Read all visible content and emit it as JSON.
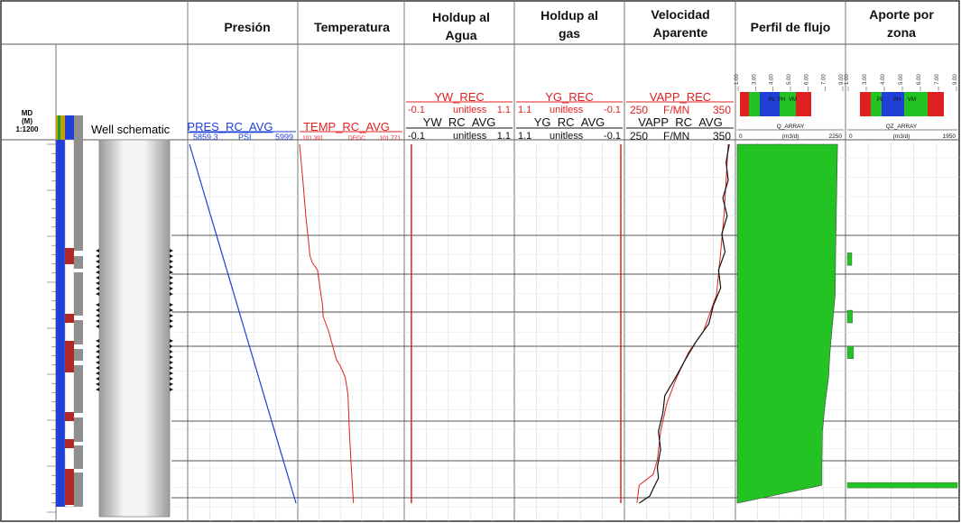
{
  "headers": {
    "presion": "Presión",
    "temperatura": "Temperatura",
    "holdup_agua_1": "Holdup al",
    "holdup_agua_2": "Agua",
    "holdup_gas_1": "Holdup al",
    "holdup_gas_2": "gas",
    "velocidad_1": "Velocidad",
    "velocidad_2": "Aparente",
    "perfil": "Perfil de flujo",
    "aporte_1": "Aporte por",
    "aporte_2": "zona"
  },
  "depth": {
    "md": "MD",
    "unit": "(M)",
    "scale": "1:1200"
  },
  "well_schematic_label": "Well schematic",
  "pres": {
    "name": "PRES_RC_AVG",
    "min": "5859.3",
    "unit": "PSI",
    "max": "5999"
  },
  "temp": {
    "name": "TEMP_RC_AVG",
    "min": "101.391",
    "unit": "DEGC",
    "max": "101.771"
  },
  "yw": {
    "rec_name": "YW_REC",
    "rec_min": "-0.1",
    "rec_unit": "unitless",
    "rec_max": "1.1",
    "avg_name": "YW_RC_AVG",
    "avg_min": "-0.1",
    "avg_unit": "unitless",
    "avg_max": "1.1"
  },
  "yg": {
    "rec_name": "YG_REC",
    "rec_min": "1.1",
    "rec_unit": "unitless",
    "rec_max": "-0.1",
    "avg_name": "YG_RC_AVG",
    "avg_min": "1.1",
    "avg_unit": "unitless",
    "avg_max": "-0.1"
  },
  "vapp": {
    "rec_name": "VAPP_REC",
    "rec_min": "250",
    "rec_unit": "F/MN",
    "rec_max": "350",
    "avg_name": "VAPP_RC_AVG",
    "avg_min": "250",
    "avg_unit": "F/MN",
    "avg_max": "350"
  },
  "q_array": {
    "name": "Q_ARRAY",
    "min": "0",
    "unit": "(m3/d)",
    "max": "2250"
  },
  "qz_array": {
    "name": "QZ_ARRAY",
    "min": "0",
    "unit": "(m3/d)",
    "max": "1950"
  },
  "mini_scale_labels": [
    "1.00",
    "3.00",
    "4.00",
    "5.00",
    "6.00",
    "7.00",
    "9.00"
  ],
  "mini_bar_labels": [
    "PL",
    "PH",
    "VM"
  ],
  "colors": {
    "pressure": "#1f3fd6",
    "temperature": "#e02020",
    "rec": "#e02020",
    "avg": "#111111",
    "flow": "#22c322",
    "depth_bar": "#1f3fd6",
    "perf_zone": "#b02828"
  },
  "chart_data": {
    "type": "line",
    "depth_axis": "relative depth fraction (0 = top of log, 1 = bottom)",
    "series": [
      {
        "name": "PRES_RC_AVG",
        "unit": "PSI",
        "range": [
          5859.3,
          5999
        ],
        "depth": [
          0,
          1
        ],
        "values": [
          5859.3,
          5999
        ]
      },
      {
        "name": "TEMP_RC_AVG",
        "unit": "DEGC",
        "range": [
          101.391,
          101.771
        ],
        "depth": [
          0,
          0.09,
          0.2,
          0.27,
          0.31,
          0.33,
          0.35,
          0.45,
          0.48,
          0.5,
          0.52,
          0.6,
          0.62,
          0.65,
          0.7,
          0.8,
          0.9,
          1.0
        ],
        "values": [
          101.391,
          101.402,
          101.414,
          101.424,
          101.429,
          101.438,
          101.457,
          101.476,
          101.478,
          101.488,
          101.498,
          101.527,
          101.543,
          101.56,
          101.57,
          101.575,
          101.582,
          101.59
        ]
      },
      {
        "name": "YW_REC",
        "unit": "unitless",
        "range": [
          -0.1,
          1.1
        ],
        "depth": [
          0,
          1
        ],
        "values": [
          -0.04,
          -0.04
        ]
      },
      {
        "name": "YG_REC",
        "unit": "unitless",
        "range": [
          1.1,
          -0.1
        ],
        "depth": [
          0,
          1
        ],
        "values": [
          -0.08,
          -0.08
        ]
      },
      {
        "name": "VAPP_REC",
        "unit": "F/MN",
        "range": [
          250,
          350
        ],
        "depth": [
          0,
          0.1,
          0.2,
          0.3,
          0.42,
          0.52,
          0.58,
          0.65,
          0.72,
          0.8,
          0.88,
          0.92,
          0.95,
          1.0
        ],
        "values": [
          345,
          343,
          341,
          338,
          334,
          322,
          308,
          297,
          288,
          282,
          279,
          275,
          262,
          260
        ]
      },
      {
        "name": "VAPP_RC_AVG",
        "unit": "F/MN",
        "range": [
          250,
          350
        ],
        "depth": [
          0,
          0.05,
          0.1,
          0.15,
          0.2,
          0.25,
          0.3,
          0.35,
          0.4,
          0.45,
          0.5,
          0.55,
          0.6,
          0.65,
          0.7,
          0.75,
          0.8,
          0.85,
          0.9,
          0.93,
          0.96,
          0.98,
          1.0
        ],
        "values": [
          346,
          343,
          345,
          340,
          344,
          339,
          342,
          336,
          338,
          331,
          327,
          315,
          305,
          296,
          286,
          284,
          280,
          282,
          279,
          280,
          275,
          272,
          262
        ]
      },
      {
        "name": "Q_ARRAY",
        "unit": "(m3/d)",
        "range": [
          0,
          2250
        ],
        "depth": [
          0,
          0.3,
          0.42,
          0.52,
          0.58,
          0.65,
          0.72,
          0.8,
          0.9,
          0.95,
          1.0
        ],
        "values": [
          2120,
          2080,
          2070,
          2000,
          1960,
          1930,
          1860,
          1800,
          1790,
          1790,
          10
        ]
      },
      {
        "name": "QZ_ARRAY",
        "unit": "(m3/d)",
        "range": [
          0,
          1950
        ],
        "type": "bar",
        "depth": [
          0.32,
          0.48,
          0.58,
          0.95
        ],
        "values": [
          80,
          90,
          110,
          1950
        ]
      }
    ]
  }
}
